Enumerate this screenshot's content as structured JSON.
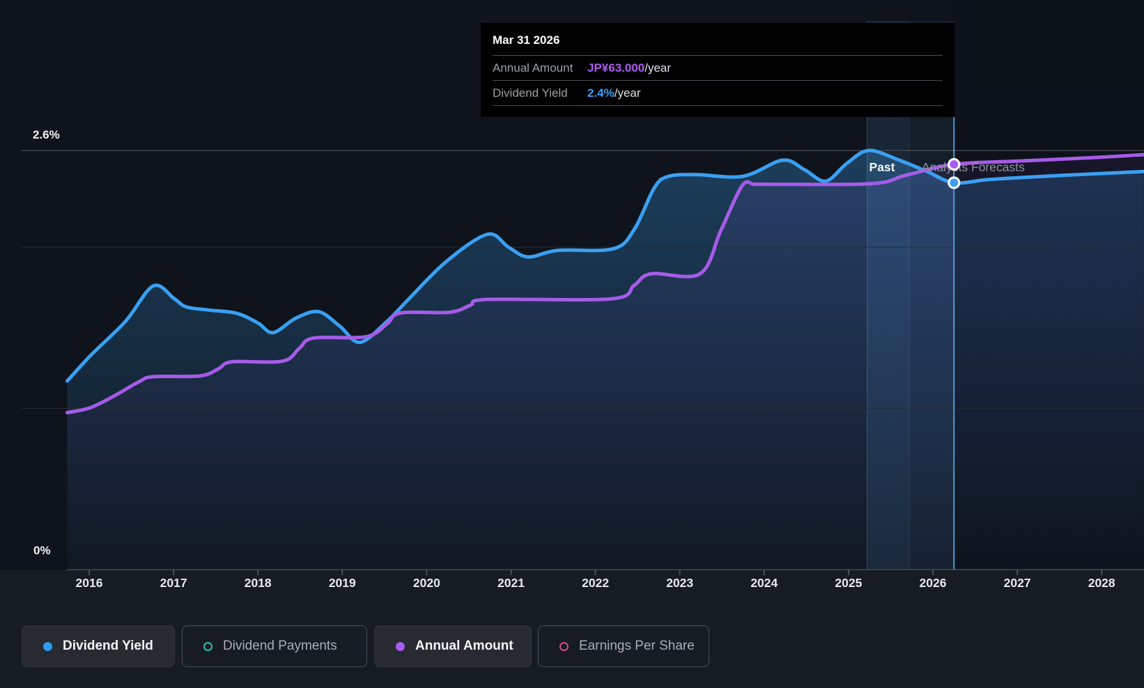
{
  "page": {
    "background": "#171b22"
  },
  "axis": {
    "y_top_label": "2.6%",
    "y_bottom_label": "0%"
  },
  "annotations": {
    "past": "Past",
    "forecast": "Analysts Forecasts"
  },
  "tooltip": {
    "date": "Mar 31 2026",
    "rows": [
      {
        "label": "Annual Amount",
        "value": "JP¥63.000",
        "suffix": "/year",
        "color": "#ab5df0"
      },
      {
        "label": "Dividend Yield",
        "value": "2.4%",
        "suffix": "/year",
        "color": "#35a0f4"
      }
    ]
  },
  "legend": {
    "items": [
      {
        "label": "Dividend Yield",
        "color": "#2d9cf0",
        "shape": "filled",
        "active": true
      },
      {
        "label": "Dividend Payments",
        "color": "#2fc0ad",
        "shape": "ring",
        "active": false
      },
      {
        "label": "Annual Amount",
        "color": "#a85cf0",
        "shape": "filled",
        "active": true
      },
      {
        "label": "Earnings Per Share",
        "color": "#cf4f8e",
        "shape": "ring",
        "active": false
      }
    ]
  },
  "chart_data": {
    "type": "line",
    "title": "",
    "x_domain": [
      2015.74,
      2028.5
    ],
    "x_ticks": [
      2016,
      2017,
      2018,
      2019,
      2020,
      2021,
      2022,
      2023,
      2024,
      2025,
      2026,
      2027,
      2028
    ],
    "y_left": {
      "unit": "%",
      "gridlines": [
        1.0,
        2.0
      ],
      "top_gridline": 2.6,
      "baseline": 0
    },
    "y_right": {
      "unit": "JP¥/year"
    },
    "grid": true,
    "legend_position": "bottom",
    "hover_band_years": [
      2025.22,
      2026.25
    ],
    "past_forecast_divider_year": 2025.72,
    "crosshair_year": 2026.25,
    "series": [
      {
        "name": "Dividend Yield",
        "axis": "pct",
        "color": "#3aa0f2",
        "points": [
          [
            2015.74,
            1.17
          ],
          [
            2016.02,
            1.33
          ],
          [
            2016.43,
            1.54
          ],
          [
            2016.76,
            1.76
          ],
          [
            2017.01,
            1.68
          ],
          [
            2017.15,
            1.63
          ],
          [
            2017.42,
            1.61
          ],
          [
            2017.75,
            1.59
          ],
          [
            2018.0,
            1.53
          ],
          [
            2018.18,
            1.47
          ],
          [
            2018.45,
            1.56
          ],
          [
            2018.72,
            1.6
          ],
          [
            2018.97,
            1.51
          ],
          [
            2019.21,
            1.41
          ],
          [
            2019.53,
            1.54
          ],
          [
            2019.79,
            1.68
          ],
          [
            2020.23,
            1.91
          ],
          [
            2020.72,
            2.08
          ],
          [
            2020.97,
            2.0
          ],
          [
            2021.2,
            1.94
          ],
          [
            2021.55,
            1.98
          ],
          [
            2022.21,
            1.99
          ],
          [
            2022.46,
            2.11
          ],
          [
            2022.7,
            2.37
          ],
          [
            2022.87,
            2.44
          ],
          [
            2023.2,
            2.45
          ],
          [
            2023.75,
            2.44
          ],
          [
            2024.22,
            2.54
          ],
          [
            2024.48,
            2.48
          ],
          [
            2024.73,
            2.41
          ],
          [
            2024.98,
            2.52
          ],
          [
            2025.24,
            2.6
          ],
          [
            2025.6,
            2.54
          ],
          [
            2025.93,
            2.47
          ],
          [
            2026.25,
            2.4
          ],
          [
            2026.67,
            2.42
          ],
          [
            2027.33,
            2.44
          ],
          [
            2028.5,
            2.47
          ]
        ]
      },
      {
        "name": "Annual Amount",
        "axis": "jpy",
        "color": "#a55ce8",
        "points": [
          [
            2015.74,
            24.4
          ],
          [
            2016.02,
            25.2
          ],
          [
            2016.31,
            27.1
          ],
          [
            2016.59,
            29.2
          ],
          [
            2016.76,
            30.0
          ],
          [
            2017.31,
            30.1
          ],
          [
            2017.53,
            31.2
          ],
          [
            2017.69,
            32.3
          ],
          [
            2018.29,
            32.4
          ],
          [
            2018.49,
            34.4
          ],
          [
            2018.66,
            36.0
          ],
          [
            2019.28,
            36.2
          ],
          [
            2019.53,
            38.2
          ],
          [
            2019.69,
            39.9
          ],
          [
            2020.27,
            40.0
          ],
          [
            2020.52,
            41.1
          ],
          [
            2020.72,
            42.0
          ],
          [
            2022.19,
            42.1
          ],
          [
            2022.46,
            44.2
          ],
          [
            2022.66,
            46.0
          ],
          [
            2023.24,
            46.0
          ],
          [
            2023.49,
            52.8
          ],
          [
            2023.74,
            59.7
          ],
          [
            2023.88,
            59.9
          ],
          [
            2024.03,
            59.9
          ],
          [
            2025.27,
            60.0
          ],
          [
            2025.68,
            61.3
          ],
          [
            2026.25,
            63.0
          ],
          [
            2027.0,
            63.5
          ],
          [
            2027.83,
            64.0
          ],
          [
            2028.5,
            64.5
          ]
        ]
      }
    ],
    "markers": [
      {
        "series": "Annual Amount",
        "axis": "jpy",
        "year": 2026.25,
        "value": 63.0,
        "color": "#a85cf0"
      },
      {
        "series": "Dividend Yield",
        "axis": "pct",
        "year": 2026.25,
        "value": 2.4,
        "color": "#3aa0f2"
      }
    ]
  }
}
